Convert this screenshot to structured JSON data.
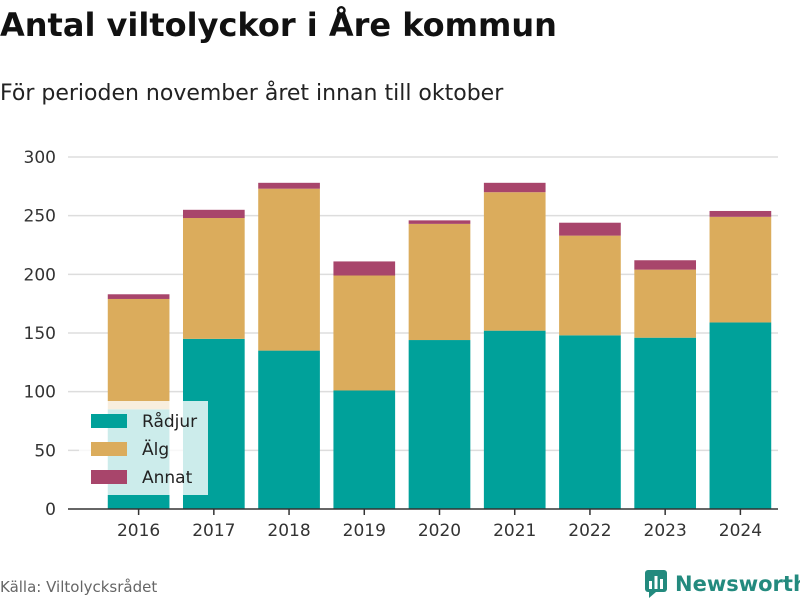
{
  "title": "Antal viltolyckor i Åre kommun",
  "subtitle": "För perioden november året innan till oktober",
  "source": "Källa: Viltolycksrådet",
  "brand": {
    "name": "Newsworthy",
    "icon": "bar-chart-logo-icon",
    "color": "#238a7e"
  },
  "chart_data": {
    "type": "bar",
    "stacked": true,
    "categories": [
      "2016",
      "2017",
      "2018",
      "2019",
      "2020",
      "2021",
      "2022",
      "2023",
      "2024"
    ],
    "series": [
      {
        "name": "Rådjur",
        "color": "#00a19a",
        "values": [
          85,
          145,
          135,
          101,
          144,
          152,
          148,
          146,
          159
        ]
      },
      {
        "name": "Älg",
        "color": "#dbac5c",
        "values": [
          94,
          103,
          138,
          98,
          99,
          118,
          85,
          58,
          90
        ]
      },
      {
        "name": "Annat",
        "color": "#a8456b",
        "values": [
          4,
          7,
          5,
          12,
          3,
          8,
          11,
          8,
          5
        ]
      }
    ],
    "ylim": [
      0,
      300
    ],
    "yticks": [
      0,
      50,
      100,
      150,
      200,
      250,
      300
    ],
    "grid": true,
    "legend_position": "bottom-left"
  }
}
